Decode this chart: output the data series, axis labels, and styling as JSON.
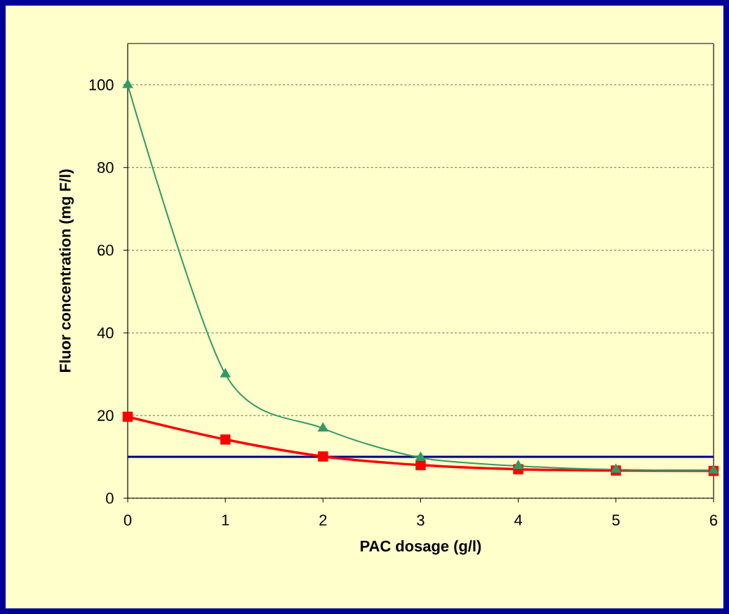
{
  "chart_data": {
    "type": "line",
    "xlabel": "PAC dosage (g/l)",
    "ylabel": "Fluor concentration (mg F/l)",
    "x": [
      0,
      1,
      2,
      3,
      4,
      5,
      6
    ],
    "series": [
      {
        "color": "#339966",
        "marker": "triangle",
        "values": [
          100,
          30,
          16.9,
          9.8,
          7.8,
          6.9,
          6.7
        ]
      },
      {
        "color": "#ff0000",
        "marker": "square",
        "values": [
          19.7,
          14.2,
          10.1,
          8.0,
          7.0,
          6.7,
          6.6
        ]
      }
    ],
    "xlim": [
      0,
      6
    ],
    "xticks": [
      0,
      1,
      2,
      3,
      4,
      5,
      6
    ],
    "ylim": [
      0,
      110
    ],
    "yticks": [
      0,
      20,
      40,
      60,
      80,
      100
    ],
    "grid": "y",
    "line_style": "solid",
    "ref_lines": [
      {
        "axis": "y",
        "value": 10,
        "color": "#000080"
      }
    ]
  }
}
